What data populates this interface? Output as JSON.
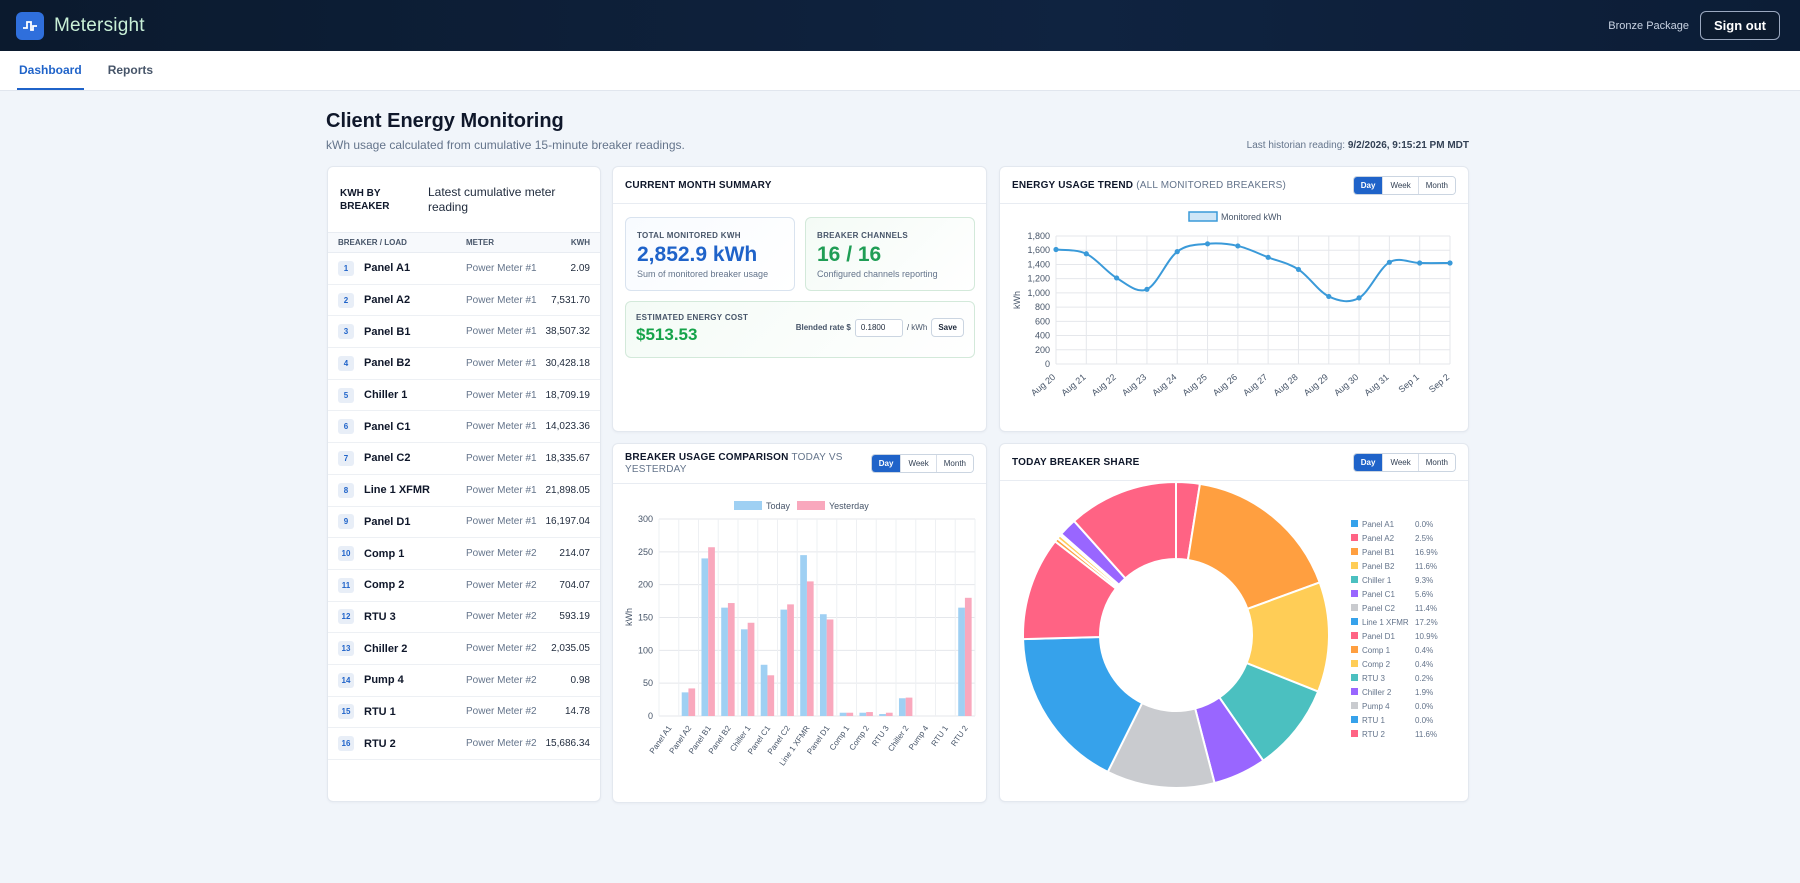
{
  "app": {
    "name": "Metersight",
    "package": "Bronze Package",
    "signout_label": "Sign out"
  },
  "nav": {
    "tabs": [
      {
        "label": "Dashboard",
        "active": true
      },
      {
        "label": "Reports",
        "active": false
      }
    ]
  },
  "page": {
    "title": "Client Energy Monitoring",
    "subtitle": "kWh usage calculated from cumulative 15-minute breaker readings.",
    "last_reading_label": "Last historian reading:",
    "last_reading_value": "9/2/2026, 9:15:21 PM MDT"
  },
  "breakers": {
    "title": "KWH BY BREAKER",
    "description": "Latest cumulative meter reading",
    "columns": [
      "BREAKER / LOAD",
      "METER",
      "KWH"
    ],
    "rows": [
      {
        "num": "1",
        "name": "Panel A1",
        "meter": "Power Meter #1",
        "kwh": "2.09"
      },
      {
        "num": "2",
        "name": "Panel A2",
        "meter": "Power Meter #1",
        "kwh": "7,531.70"
      },
      {
        "num": "3",
        "name": "Panel B1",
        "meter": "Power Meter #1",
        "kwh": "38,507.32"
      },
      {
        "num": "4",
        "name": "Panel B2",
        "meter": "Power Meter #1",
        "kwh": "30,428.18"
      },
      {
        "num": "5",
        "name": "Chiller 1",
        "meter": "Power Meter #1",
        "kwh": "18,709.19"
      },
      {
        "num": "6",
        "name": "Panel C1",
        "meter": "Power Meter #1",
        "kwh": "14,023.36"
      },
      {
        "num": "7",
        "name": "Panel C2",
        "meter": "Power Meter #1",
        "kwh": "18,335.67"
      },
      {
        "num": "8",
        "name": "Line 1 XFMR",
        "meter": "Power Meter #1",
        "kwh": "21,898.05"
      },
      {
        "num": "9",
        "name": "Panel D1",
        "meter": "Power Meter #1",
        "kwh": "16,197.04"
      },
      {
        "num": "10",
        "name": "Comp 1",
        "meter": "Power Meter #2",
        "kwh": "214.07"
      },
      {
        "num": "11",
        "name": "Comp 2",
        "meter": "Power Meter #2",
        "kwh": "704.07"
      },
      {
        "num": "12",
        "name": "RTU 3",
        "meter": "Power Meter #2",
        "kwh": "593.19"
      },
      {
        "num": "13",
        "name": "Chiller 2",
        "meter": "Power Meter #2",
        "kwh": "2,035.05"
      },
      {
        "num": "14",
        "name": "Pump 4",
        "meter": "Power Meter #2",
        "kwh": "0.98"
      },
      {
        "num": "15",
        "name": "RTU 1",
        "meter": "Power Meter #2",
        "kwh": "14.78"
      },
      {
        "num": "16",
        "name": "RTU 2",
        "meter": "Power Meter #2",
        "kwh": "15,686.34"
      }
    ]
  },
  "summary": {
    "title": "CURRENT MONTH SUMMARY",
    "total_label": "TOTAL MONITORED KWH",
    "total_value": "2,852.9 kWh",
    "total_sub": "Sum of monitored breaker usage",
    "channels_label": "BREAKER CHANNELS",
    "channels_value": "16 / 16",
    "channels_sub": "Configured channels reporting",
    "cost_label": "ESTIMATED ENERGY COST",
    "cost_value": "$513.53",
    "rate_label": "Blended rate $",
    "rate_value": "0.1800",
    "rate_unit": "/ kWh",
    "save_label": "Save"
  },
  "toggle": {
    "options": [
      "Day",
      "Week",
      "Month"
    ],
    "selected": "Day"
  },
  "colors": {
    "accent": "#1f63c9",
    "line": "#3a9ad9",
    "today": "#9fd0f3",
    "yesterday": "#f9a8bd",
    "cost_green": "#16a34a"
  },
  "chart_data": [
    {
      "type": "line",
      "title": "ENERGY USAGE TREND",
      "subtitle": "(ALL MONITORED BREAKERS)",
      "legend": "Monitored kWh",
      "ylabel": "kWh",
      "ylim": [
        0,
        1800
      ],
      "yticks": [
        "0",
        "200",
        "400",
        "600",
        "800",
        "1,000",
        "1,200",
        "1,400",
        "1,600",
        "1,800"
      ],
      "categories": [
        "Aug 20",
        "Aug 21",
        "Aug 22",
        "Aug 23",
        "Aug 24",
        "Aug 25",
        "Aug 26",
        "Aug 27",
        "Aug 28",
        "Aug 29",
        "Aug 30",
        "Aug 31",
        "Sep 1",
        "Sep 2"
      ],
      "values": [
        1610,
        1550,
        1210,
        1050,
        1580,
        1690,
        1660,
        1500,
        1330,
        950,
        930,
        1430,
        1420,
        1420
      ]
    },
    {
      "type": "bar",
      "title": "BREAKER USAGE COMPARISON",
      "subtitle": "TODAY VS YESTERDAY",
      "ylabel": "kWh",
      "ylim": [
        0,
        300
      ],
      "yticks": [
        "0",
        "50",
        "100",
        "150",
        "200",
        "250",
        "300"
      ],
      "categories": [
        "Panel A1",
        "Panel A2",
        "Panel B1",
        "Panel B2",
        "Chiller 1",
        "Panel C1",
        "Panel C2",
        "Line 1 XFMR",
        "Panel D1",
        "Comp 1",
        "Comp 2",
        "RTU 3",
        "Chiller 2",
        "Pump 4",
        "RTU 1",
        "RTU 2"
      ],
      "series": [
        {
          "name": "Today",
          "values": [
            0,
            36,
            240,
            165,
            132,
            78,
            162,
            245,
            155,
            5,
            5,
            3,
            27,
            0,
            0,
            165
          ]
        },
        {
          "name": "Yesterday",
          "values": [
            0,
            42,
            257,
            172,
            142,
            62,
            170,
            205,
            147,
            5,
            6,
            5,
            28,
            0,
            0,
            180
          ]
        }
      ]
    },
    {
      "type": "pie",
      "title": "TODAY BREAKER SHARE",
      "categories": [
        "Panel A1",
        "Panel A2",
        "Panel B1",
        "Panel B2",
        "Chiller 1",
        "Panel C1",
        "Panel C2",
        "Line 1 XFMR",
        "Panel D1",
        "Comp 1",
        "Comp 2",
        "RTU 3",
        "Chiller 2",
        "Pump 4",
        "RTU 1",
        "RTU 2"
      ],
      "values": [
        0.0,
        2.5,
        16.9,
        11.6,
        9.3,
        5.6,
        11.4,
        17.2,
        10.9,
        0.4,
        0.4,
        0.2,
        1.9,
        0.0,
        0.0,
        11.6
      ],
      "labels": [
        "0.0%",
        "2.5%",
        "16.9%",
        "11.6%",
        "9.3%",
        "5.6%",
        "11.4%",
        "17.2%",
        "10.9%",
        "0.4%",
        "0.4%",
        "0.2%",
        "1.9%",
        "0.0%",
        "0.0%",
        "11.6%"
      ],
      "colors": [
        "#36a2eb",
        "#ff6384",
        "#ff9f40",
        "#ffcd56",
        "#4bc0c0",
        "#9966ff",
        "#c9cbcf",
        "#36a2eb",
        "#ff6384",
        "#ff9f40",
        "#ffcd56",
        "#4bc0c0",
        "#9966ff",
        "#c9cbcf",
        "#36a2eb",
        "#ff6384"
      ]
    }
  ]
}
